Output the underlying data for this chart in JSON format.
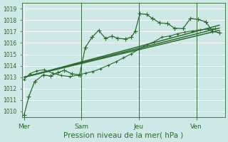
{
  "bg_color": "#cde8e6",
  "grid_color": "#ffffff",
  "line_color": "#2d6a2d",
  "xlabel": "Pression niveau de la mer( hPa )",
  "ylim": [
    1009.5,
    1019.5
  ],
  "yticks": [
    1010,
    1011,
    1012,
    1013,
    1014,
    1015,
    1016,
    1017,
    1018,
    1019
  ],
  "day_labels": [
    "Mer",
    "Sam",
    "Jeu",
    "Ven"
  ],
  "day_positions": [
    0,
    3,
    6,
    9
  ],
  "vlines": [
    3,
    6,
    9
  ],
  "xlim": [
    -0.1,
    10.5
  ],
  "series": [
    {
      "comment": "upper wiggly line with + markers, peaks around 1018.5",
      "x": [
        0,
        0.25,
        0.55,
        1.0,
        1.4,
        1.75,
        2.1,
        2.5,
        2.9,
        3.2,
        3.55,
        3.9,
        4.25,
        4.6,
        4.9,
        5.3,
        5.6,
        5.8,
        6.05,
        6.4,
        6.7,
        7.1,
        7.5,
        7.85,
        8.3,
        8.7,
        9.1,
        9.5,
        9.85,
        10.2
      ],
      "y": [
        1009.7,
        1011.3,
        1012.6,
        1013.2,
        1013.1,
        1013.4,
        1013.6,
        1013.3,
        1013.2,
        1015.6,
        1016.5,
        1017.1,
        1016.4,
        1016.6,
        1016.4,
        1016.35,
        1016.5,
        1017.0,
        1018.55,
        1018.5,
        1018.15,
        1017.75,
        1017.7,
        1017.3,
        1017.25,
        1018.15,
        1018.05,
        1017.85,
        1017.0,
        1016.9
      ],
      "marker": "+",
      "markersize": 4,
      "linewidth": 0.9,
      "linestyle": "-"
    },
    {
      "comment": "lower wiggly line with + markers, starts at 1012.8, dips then rises",
      "x": [
        0,
        0.3,
        0.65,
        1.05,
        1.5,
        1.95,
        2.4,
        2.85,
        3.2,
        3.6,
        4.0,
        4.4,
        4.8,
        5.2,
        5.6,
        6.0,
        6.4,
        6.8,
        7.2,
        7.6,
        8.0,
        8.4,
        8.8,
        9.2,
        9.6,
        10.0
      ],
      "y": [
        1012.8,
        1013.3,
        1013.55,
        1013.65,
        1013.35,
        1013.15,
        1013.05,
        1013.2,
        1013.35,
        1013.5,
        1013.75,
        1014.05,
        1014.35,
        1014.7,
        1015.05,
        1015.45,
        1015.85,
        1016.1,
        1016.5,
        1016.6,
        1016.8,
        1016.95,
        1017.05,
        1017.15,
        1017.2,
        1017.25
      ],
      "marker": "+",
      "markersize": 3.5,
      "linewidth": 0.8,
      "linestyle": "-"
    },
    {
      "comment": "smooth line 1 - lowest, most gradual slope",
      "x": [
        0,
        10.2
      ],
      "y": [
        1013.0,
        1017.1
      ],
      "marker": null,
      "markersize": 0,
      "linewidth": 1.1,
      "linestyle": "-"
    },
    {
      "comment": "smooth line 2 - middle slope",
      "x": [
        0,
        10.2
      ],
      "y": [
        1013.0,
        1017.3
      ],
      "marker": null,
      "markersize": 0,
      "linewidth": 1.1,
      "linestyle": "-"
    },
    {
      "comment": "smooth line 3 - steepest of the 3 smooth lines",
      "x": [
        0,
        10.2
      ],
      "y": [
        1013.0,
        1017.55
      ],
      "marker": null,
      "markersize": 0,
      "linewidth": 1.1,
      "linestyle": "-"
    }
  ]
}
